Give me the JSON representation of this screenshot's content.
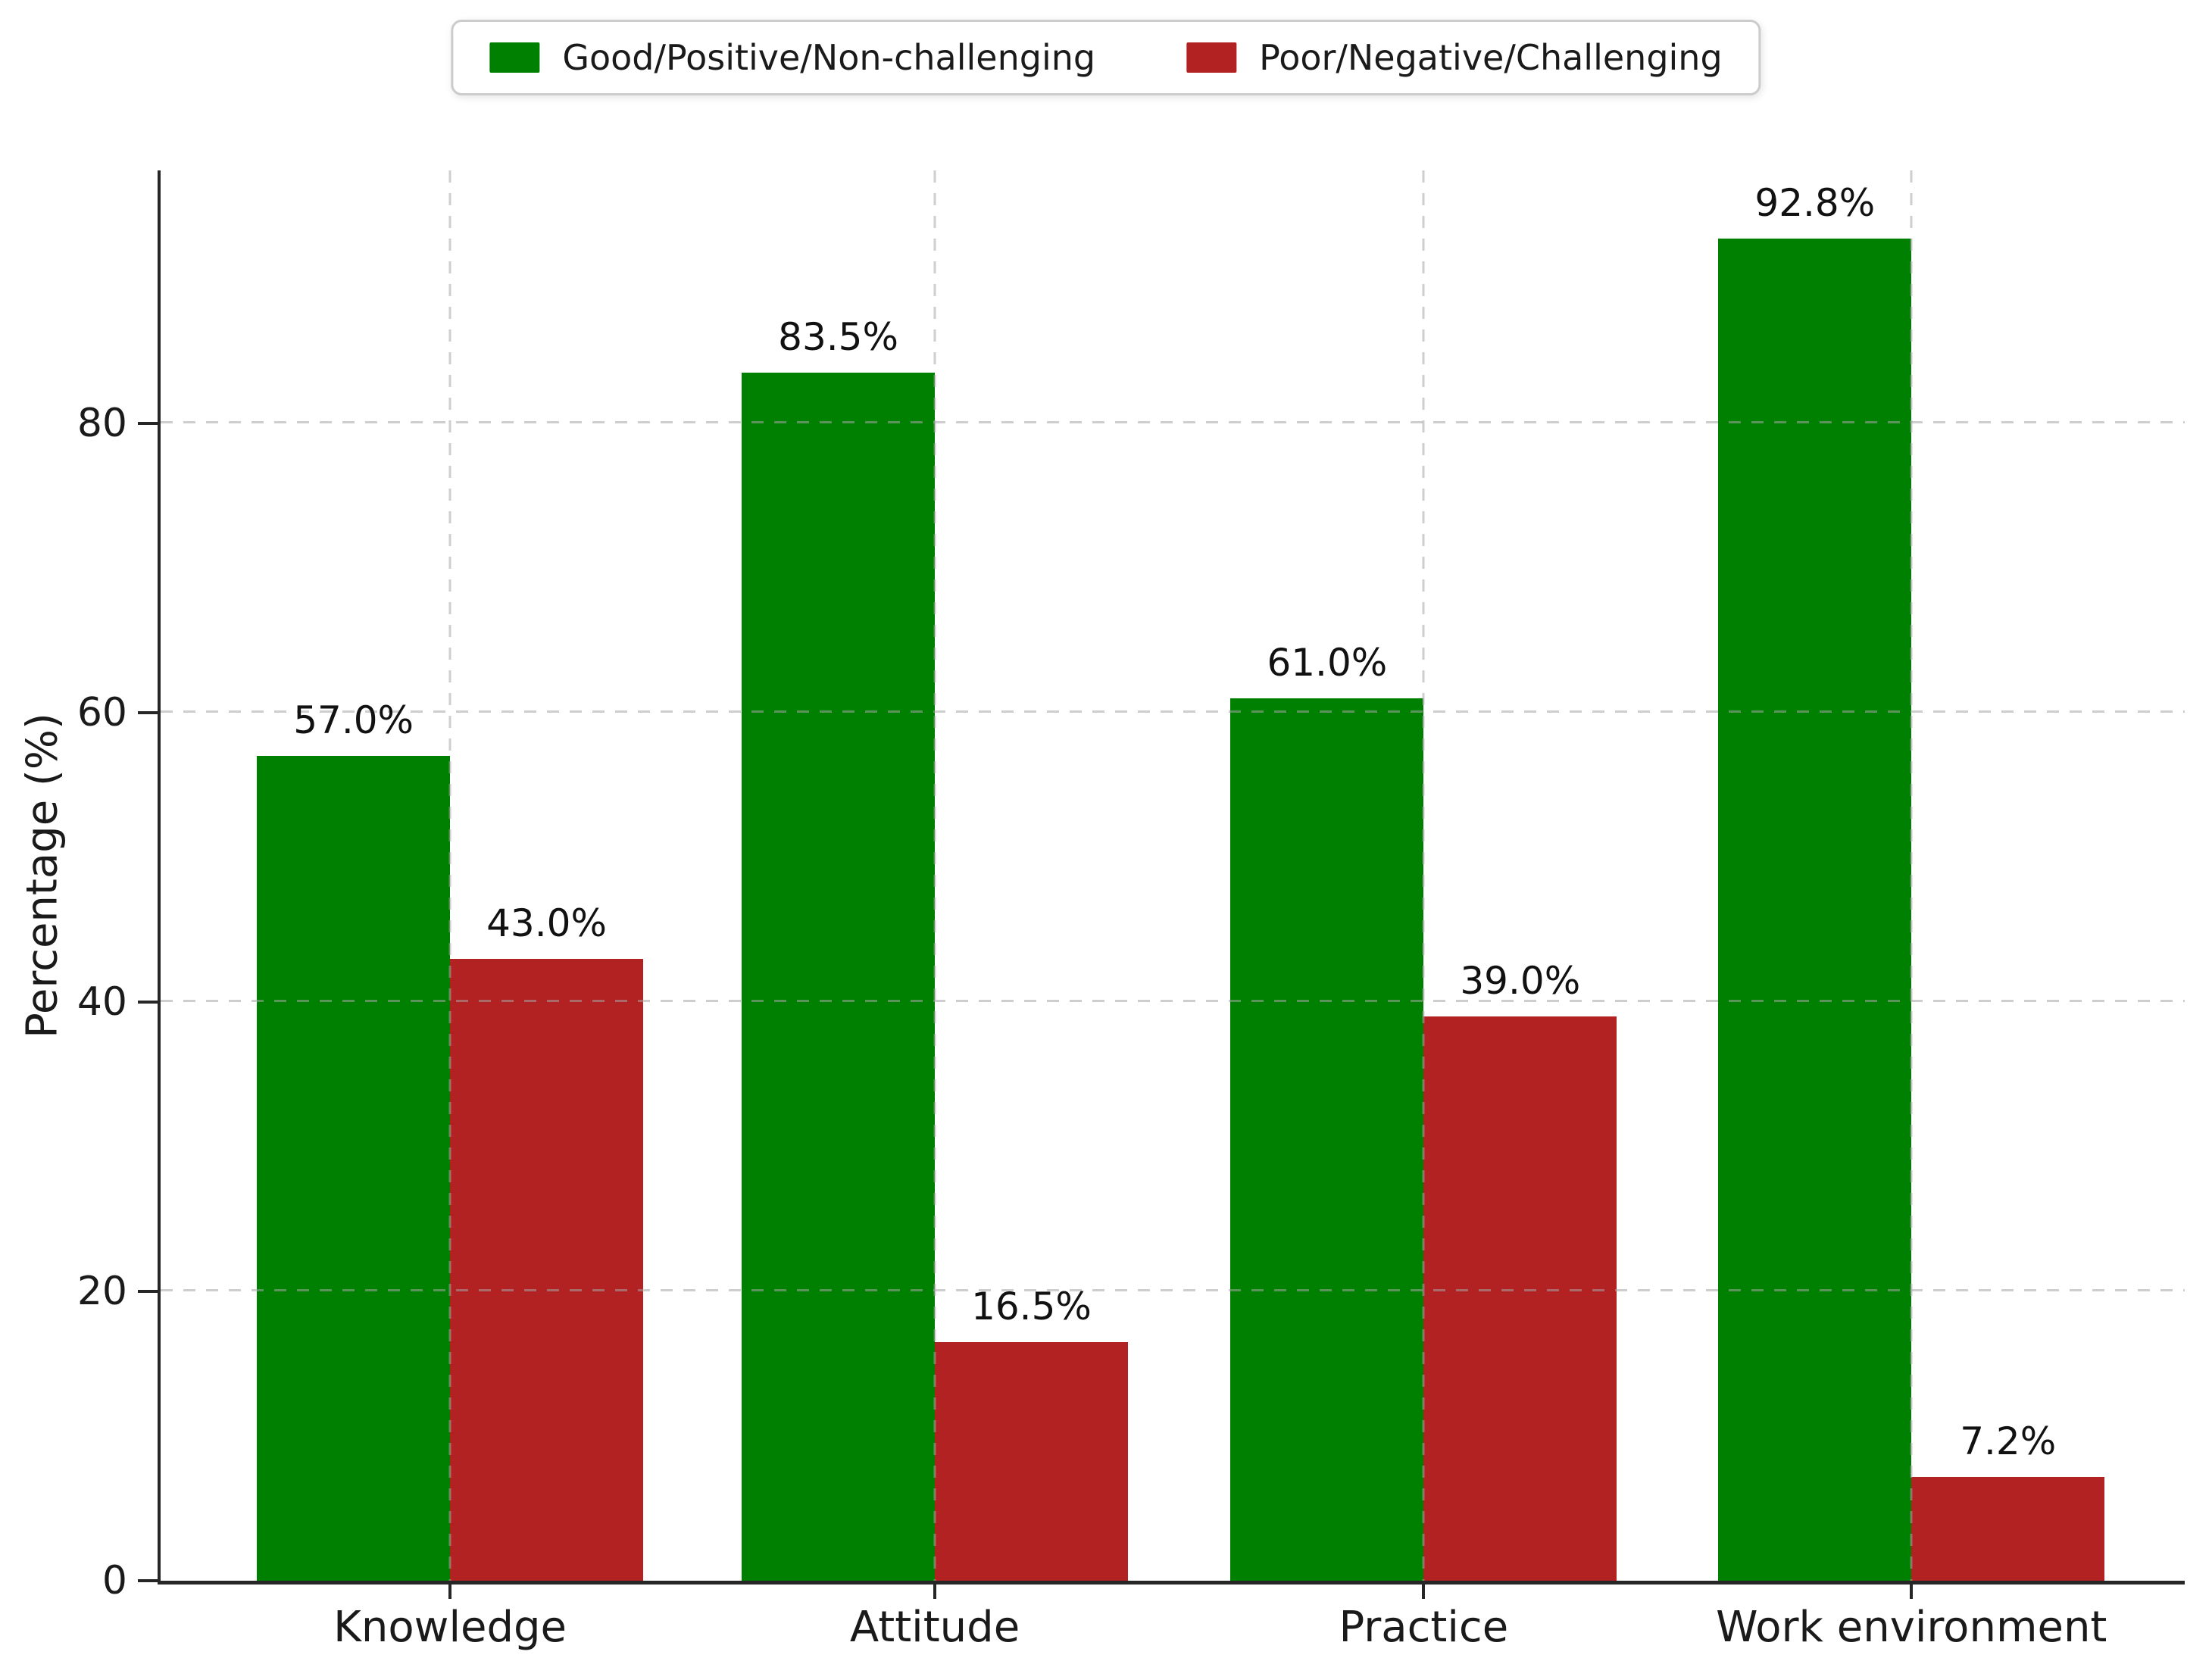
{
  "chart_data": {
    "type": "bar",
    "title": "",
    "categories": [
      "Knowledge",
      "Attitude",
      "Practice",
      "Work environment"
    ],
    "series": [
      {
        "name": "Good/Positive/Non-challenging",
        "color": "#008000",
        "values": [
          57.0,
          83.5,
          61.0,
          92.8
        ],
        "value_labels": [
          "57.0%",
          "83.5%",
          "61.0%",
          "92.8%"
        ]
      },
      {
        "name": "Poor/Negative/Challenging",
        "color": "#B22222",
        "values": [
          43.0,
          16.5,
          39.0,
          7.2
        ],
        "value_labels": [
          "43.0%",
          "16.5%",
          "39.0%",
          "7.2%"
        ]
      }
    ],
    "xlabel": "",
    "ylabel": "Percentage (%)",
    "yticks": [
      "0",
      "20",
      "40",
      "60",
      "80"
    ],
    "ytick_values": [
      0,
      20,
      40,
      60,
      80
    ],
    "ylim": [
      0,
      97.5
    ],
    "grid": "dashed gray, horizontal at y-ticks and vertical at category centers, drawn over bars",
    "legend_position": "top-center",
    "background": "#ffffff",
    "text_color": "#1a1a1a"
  }
}
